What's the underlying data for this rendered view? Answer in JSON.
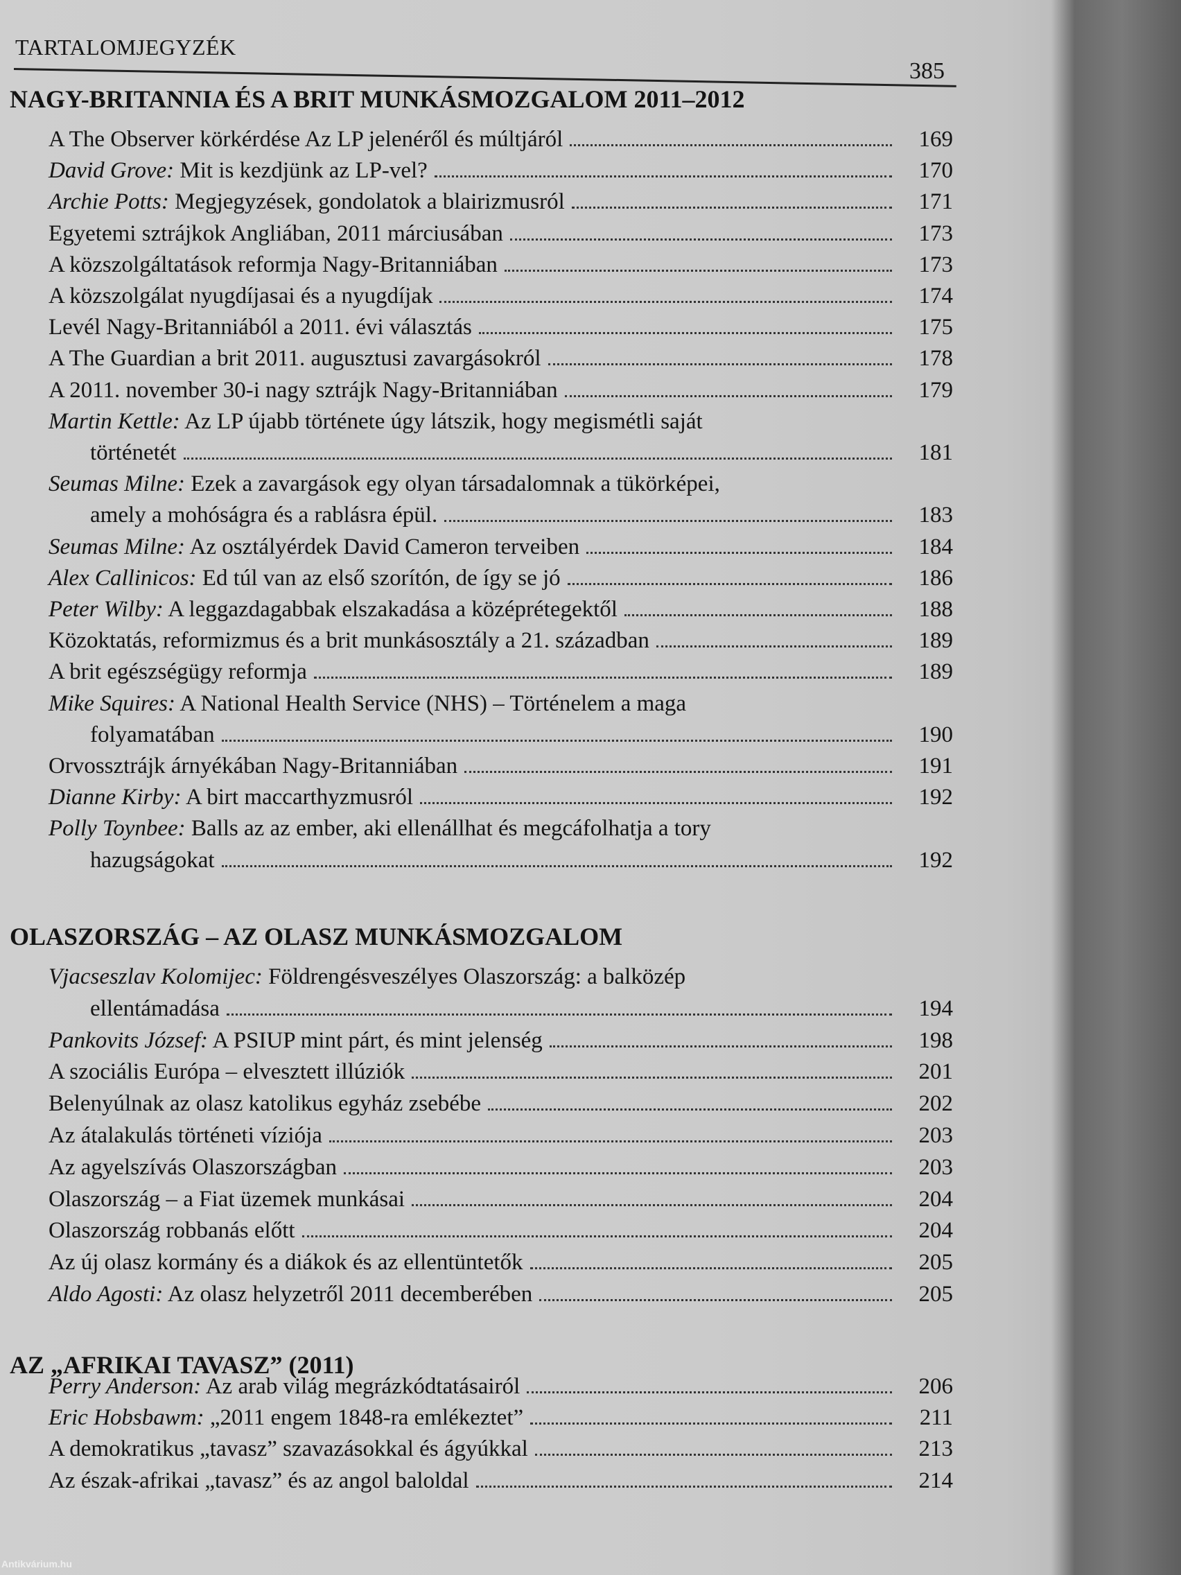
{
  "header": {
    "running_title": "TARTALOMJEGYZÉK",
    "page_number": "385"
  },
  "sections": [
    {
      "title": "NAGY-BRITANNIA ÉS A BRIT MUNKÁSMOZGALOM 2011–2012",
      "entries": [
        {
          "author": "",
          "title": "A The Observer körkérdése Az LP jelenéről és múltjáról",
          "page": "169"
        },
        {
          "author": "David Grove:",
          "title": "Mit is kezdjünk az LP-vel?",
          "page": "170"
        },
        {
          "author": "Archie Potts:",
          "title": "Megjegyzések, gondolatok a blairizmusról",
          "page": "171"
        },
        {
          "author": "",
          "title": "Egyetemi sztrájkok Angliában, 2011 márciusában",
          "page": "173"
        },
        {
          "author": "",
          "title": "A közszolgáltatások reformja Nagy-Britanniában",
          "page": "173"
        },
        {
          "author": "",
          "title": "A közszolgálat nyugdíjasai és a nyugdíjak",
          "page": "174"
        },
        {
          "author": "",
          "title": "Levél Nagy-Britanniából a 2011. évi választás",
          "page": "175"
        },
        {
          "author": "",
          "title": "A The Guardian a brit 2011. augusztusi zavargásokról",
          "page": "178"
        },
        {
          "author": "",
          "title": "A 2011. november 30-i nagy sztrájk Nagy-Britanniában",
          "page": "179"
        },
        {
          "author": "Martin Kettle:",
          "title": "Az LP újabb története úgy látszik, hogy megismétli saját",
          "cont": "történetét",
          "page": "181"
        },
        {
          "author": "Seumas Milne:",
          "title": "Ezek a zavargások egy olyan társadalomnak a tükörképei,",
          "cont": "amely a mohóságra és a rablásra épül.",
          "page": "183"
        },
        {
          "author": "Seumas Milne:",
          "title": "Az osztályérdek David Cameron terveiben",
          "page": "184"
        },
        {
          "author": "Alex Callinicos:",
          "title": "Ed túl van az első szorítón, de így se jó",
          "page": "186"
        },
        {
          "author": "Peter Wilby:",
          "title": "A leggazdagabbak elszakadása a középrétegektől",
          "page": "188"
        },
        {
          "author": "",
          "title": "Közoktatás, reformizmus és a brit munkásosztály a 21. században",
          "page": "189"
        },
        {
          "author": "",
          "title": "A brit egészségügy reformja",
          "page": "189"
        },
        {
          "author": "Mike Squires:",
          "title": "A National Health Service (NHS) – Történelem a maga",
          "cont": "folyamatában",
          "page": "190"
        },
        {
          "author": "",
          "title": "Orvossztrájk árnyékában Nagy-Britanniában",
          "page": "191"
        },
        {
          "author": "Dianne Kirby:",
          "title": "A birt maccarthyzmusról",
          "page": "192"
        },
        {
          "author": "Polly Toynbee:",
          "title": "Balls az az ember, aki ellenállhat és megcáfolhatja a tory",
          "cont": "hazugságokat",
          "page": "192"
        }
      ]
    },
    {
      "title": "OLASZORSZÁG – AZ OLASZ MUNKÁSMOZGALOM",
      "entries": [
        {
          "author": "Vjacseszlav Kolomijec:",
          "title": "Földrengésveszélyes Olaszország: a balközép",
          "cont": "ellentámadása",
          "page": "194"
        },
        {
          "author": "Pankovits József:",
          "title": "A PSIUP mint párt, és mint jelenség",
          "page": "198"
        },
        {
          "author": "",
          "title": "A szociális Európa – elvesztett illúziók",
          "page": "201"
        },
        {
          "author": "",
          "title": "Belenyúlnak az olasz katolikus egyház zsebébe",
          "page": "202"
        },
        {
          "author": "",
          "title": "Az átalakulás történeti víziója",
          "page": "203"
        },
        {
          "author": "",
          "title": "Az agyelszívás Olaszországban",
          "page": "203"
        },
        {
          "author": "",
          "title": "Olaszország – a Fiat üzemek munkásai",
          "page": "204"
        },
        {
          "author": "",
          "title": "Olaszország robbanás előtt",
          "page": "204"
        },
        {
          "author": "",
          "title": "Az új olasz kormány és a diákok és az ellentüntetők",
          "page": "205"
        },
        {
          "author": "Aldo Agosti:",
          "title": "Az olasz helyzetről 2011 decemberében",
          "page": "205"
        }
      ]
    },
    {
      "title": "AZ „AFRIKAI TAVASZ” (2011)",
      "entries": [
        {
          "author": "Perry Anderson:",
          "title": "Az arab világ megrázkódtatásairól",
          "page": "206"
        },
        {
          "author": "Eric Hobsbawm:",
          "title": "„2011 engem 1848-ra emlékeztet”",
          "page": "211"
        },
        {
          "author": "",
          "title": "A demokratikus „tavasz” szavazásokkal és ágyúkkal",
          "page": "213"
        },
        {
          "author": "",
          "title": "Az észak-afrikai „tavasz” és az angol baloldal",
          "page": "214"
        }
      ]
    }
  ],
  "watermark": "Antikvárium.hu"
}
